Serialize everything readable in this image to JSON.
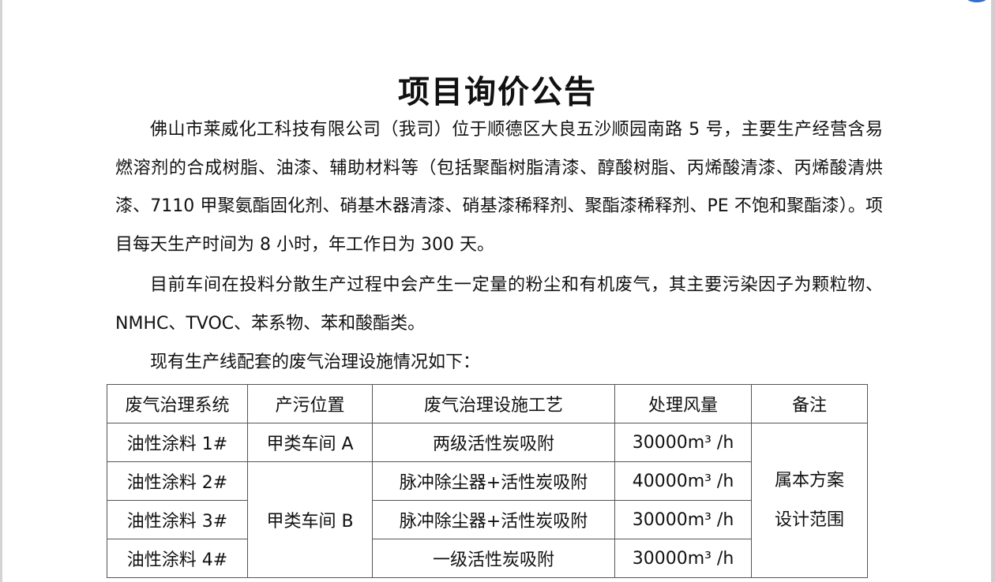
{
  "title": "项目询价公告",
  "paragraphs": [
    "佛山市莱威化工科技有限公司（我司）位于顺德区大良五沙顺园南路 5 号，主要生产经营含易燃溶剂的合成树脂、油漆、辅助材料等（包括聚酯树脂清漆、醇酸树脂、丙烯酸清漆、丙烯酸清烘漆、7110 甲聚氨酯固化剂、硝基木器清漆、硝基漆稀释剂、聚酯漆稀释剂、PE 不饱和聚酯漆）。项目每天生产时间为 8 小时，年工作日为 300 天。",
    "目前车间在投料分散生产过程中会产生一定量的粉尘和有机废气，其主要污染因子为颗粒物、NMHC、TVOC、苯系物、苯和酸酯类。",
    "现有生产线配套的废气治理设施情况如下："
  ],
  "table": {
    "headers": [
      "废气治理系统",
      "产污位置",
      "废气治理设施工艺",
      "处理风量",
      "备注"
    ],
    "rows": [
      {
        "system": "油性涂料  1#",
        "location": "甲类车间 A",
        "process": "两级活性炭吸附",
        "flow": "30000m³ /h"
      },
      {
        "system": "油性涂料  2#",
        "location": "甲类车间 B",
        "process": "脉冲除尘器+活性炭吸附",
        "flow": "40000m³ /h"
      },
      {
        "system": "油性涂料  3#",
        "process": "脉冲除尘器+活性炭吸附",
        "flow": "30000m³ /h"
      },
      {
        "system": "油性涂料  4#",
        "process": "一级活性炭吸附",
        "flow": "30000m³ /h"
      }
    ],
    "remark_line1": "属本方案",
    "remark_line2": "设计范围"
  }
}
